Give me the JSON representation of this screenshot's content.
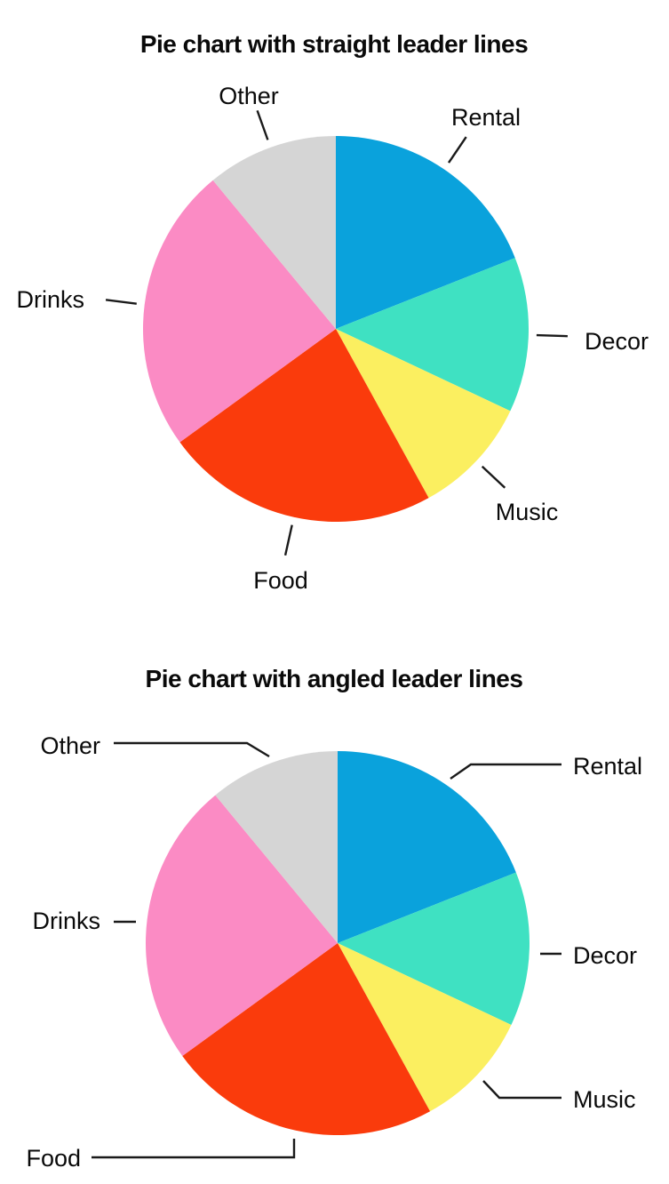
{
  "page": {
    "background": "#ffffff"
  },
  "chart_data": [
    {
      "type": "pie",
      "title": "Pie chart with straight leader lines",
      "leader_lines": "straight",
      "categories": [
        "Rental",
        "Decor",
        "Music",
        "Food",
        "Drinks",
        "Other"
      ],
      "values": [
        19,
        13,
        10,
        23,
        24,
        11
      ],
      "unit": "percent-estimated-from-slice-angles",
      "start_angle_deg": 0,
      "direction": "clockwise",
      "legend": "none",
      "label_placement": "outside slices with straight radial leader lines",
      "colors": {
        "Rental": "#0AA2DC",
        "Decor": "#3FE1C2",
        "Music": "#FBEF60",
        "Food": "#FA3B0C",
        "Drinks": "#FB8BC4",
        "Other": "#D5D5D5"
      }
    },
    {
      "type": "pie",
      "title": "Pie chart with angled leader lines",
      "leader_lines": "angled",
      "categories": [
        "Rental",
        "Decor",
        "Music",
        "Food",
        "Drinks",
        "Other"
      ],
      "values": [
        19,
        13,
        10,
        23,
        24,
        11
      ],
      "unit": "percent-estimated-from-slice-angles",
      "start_angle_deg": 0,
      "direction": "clockwise",
      "legend": "none",
      "label_placement": "outside slices with angled (elbow) leader lines",
      "colors": {
        "Rental": "#0AA2DC",
        "Decor": "#3FE1C2",
        "Music": "#FBEF60",
        "Food": "#FA3B0C",
        "Drinks": "#FB8BC4",
        "Other": "#D5D5D5"
      }
    }
  ],
  "text_color": "#0a0a0a",
  "leader_line_color": "#1a1a1a"
}
